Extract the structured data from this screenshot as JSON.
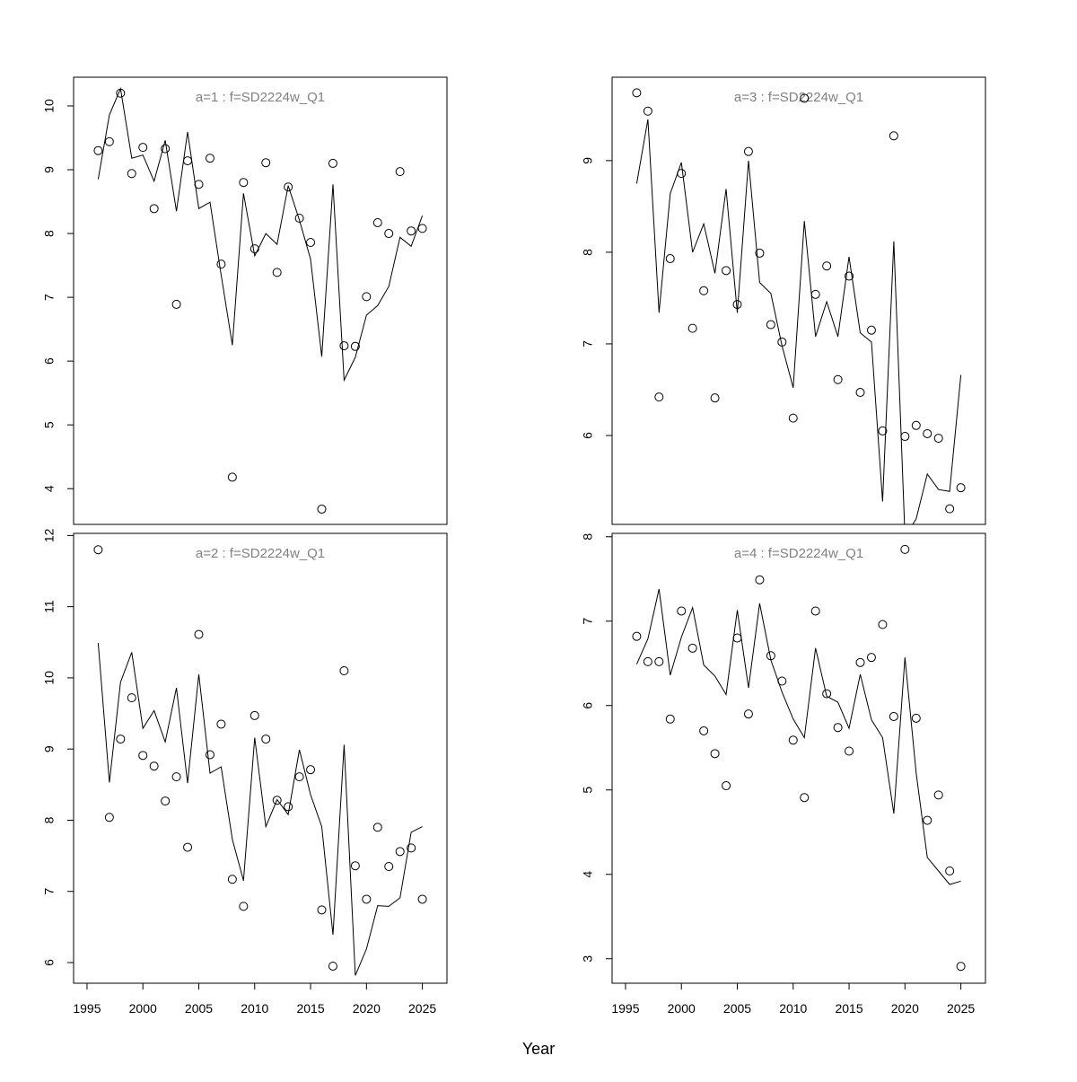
{
  "chart_data": {
    "type": "scatter+line",
    "xlabel": "Year",
    "x_ticks": [
      1995,
      2000,
      2005,
      2010,
      2015,
      2020,
      2025
    ],
    "x": [
      1996,
      1997,
      1998,
      1999,
      2000,
      2001,
      2002,
      2003,
      2004,
      2005,
      2006,
      2007,
      2008,
      2009,
      2010,
      2011,
      2012,
      2013,
      2014,
      2015,
      2016,
      2017,
      2018,
      2019,
      2020,
      2021,
      2022,
      2023,
      2024,
      2025
    ],
    "xlim": [
      1993.8,
      2027.2
    ],
    "panels": [
      {
        "title": "a=1  :  f=SD2224w_Q1",
        "ylim": [
          3.44,
          10.45
        ],
        "y_ticks": [
          4,
          5,
          6,
          7,
          8,
          9,
          10
        ],
        "observed": [
          9.3,
          9.44,
          10.2,
          8.94,
          9.35,
          8.39,
          9.33,
          6.89,
          9.14,
          8.77,
          9.18,
          7.52,
          4.18,
          8.8,
          7.76,
          9.11,
          7.39,
          8.73,
          8.24,
          7.86,
          3.68,
          9.1,
          6.24,
          6.23,
          7.01,
          8.17,
          8.0,
          8.97,
          8.04,
          8.08
        ],
        "fitted": [
          8.85,
          9.86,
          10.27,
          9.18,
          9.23,
          8.82,
          9.46,
          8.35,
          9.59,
          8.39,
          8.49,
          7.35,
          6.25,
          8.63,
          7.65,
          8.0,
          7.83,
          8.75,
          8.21,
          7.6,
          6.07,
          8.77,
          5.7,
          6.06,
          6.72,
          6.87,
          7.17,
          7.94,
          7.8,
          8.28
        ]
      },
      {
        "title": "a=3  :  f=SD2224w_Q1",
        "ylim": [
          5.03,
          9.91
        ],
        "y_ticks": [
          6,
          7,
          8,
          9
        ],
        "observed": [
          9.74,
          9.54,
          6.42,
          7.93,
          8.86,
          7.17,
          7.58,
          6.41,
          7.8,
          7.43,
          9.1,
          7.99,
          7.21,
          7.02,
          6.19,
          9.68,
          7.54,
          7.85,
          6.61,
          7.74,
          6.47,
          7.15,
          6.05,
          9.27,
          5.99,
          6.11,
          6.02,
          5.97,
          5.2,
          5.43
        ],
        "fitted": [
          8.75,
          9.45,
          7.34,
          8.64,
          8.98,
          8.0,
          8.31,
          7.77,
          8.69,
          7.34,
          9.0,
          7.67,
          7.55,
          6.98,
          6.52,
          8.34,
          7.08,
          7.46,
          7.08,
          7.95,
          7.12,
          7.02,
          5.28,
          8.12,
          4.9,
          5.09,
          5.58,
          5.41,
          5.39,
          6.66
        ]
      },
      {
        "title": "a=2  :  f=SD2224w_Q1",
        "ylim": [
          5.71,
          12.03
        ],
        "y_ticks": [
          6,
          7,
          8,
          9,
          10,
          11,
          12
        ],
        "observed": [
          11.8,
          8.04,
          9.14,
          9.72,
          8.91,
          8.76,
          8.27,
          8.61,
          7.62,
          10.61,
          8.92,
          9.35,
          7.17,
          6.79,
          9.47,
          9.14,
          8.28,
          8.19,
          8.61,
          8.71,
          6.74,
          5.95,
          10.1,
          7.36,
          6.89,
          7.9,
          7.35,
          7.56,
          7.61,
          6.89
        ],
        "fitted": [
          10.49,
          8.53,
          9.94,
          10.36,
          9.29,
          9.54,
          9.1,
          9.86,
          8.52,
          10.05,
          8.66,
          8.75,
          7.73,
          7.15,
          9.16,
          7.91,
          8.29,
          8.08,
          8.99,
          8.36,
          7.91,
          6.39,
          9.06,
          5.82,
          6.19,
          6.8,
          6.79,
          6.91,
          7.83,
          7.91
        ]
      },
      {
        "title": "a=4  :  f=SD2224w_Q1",
        "ylim": [
          2.71,
          8.04
        ],
        "y_ticks": [
          3,
          4,
          5,
          6,
          7,
          8
        ],
        "observed": [
          6.82,
          6.52,
          6.52,
          5.84,
          7.12,
          6.68,
          5.7,
          5.43,
          5.05,
          6.8,
          5.9,
          7.49,
          6.59,
          6.29,
          5.59,
          4.91,
          7.12,
          6.14,
          5.74,
          5.46,
          6.51,
          6.57,
          6.96,
          5.87,
          7.85,
          5.85,
          4.64,
          4.94,
          4.04,
          2.91
        ],
        "fitted": [
          6.49,
          6.79,
          7.38,
          6.36,
          6.81,
          7.16,
          6.48,
          6.35,
          6.13,
          7.13,
          6.21,
          7.21,
          6.54,
          6.16,
          5.84,
          5.62,
          6.68,
          6.11,
          6.04,
          5.73,
          6.37,
          5.83,
          5.62,
          4.72,
          6.57,
          5.2,
          4.2,
          4.04,
          3.88,
          3.92
        ]
      }
    ]
  }
}
